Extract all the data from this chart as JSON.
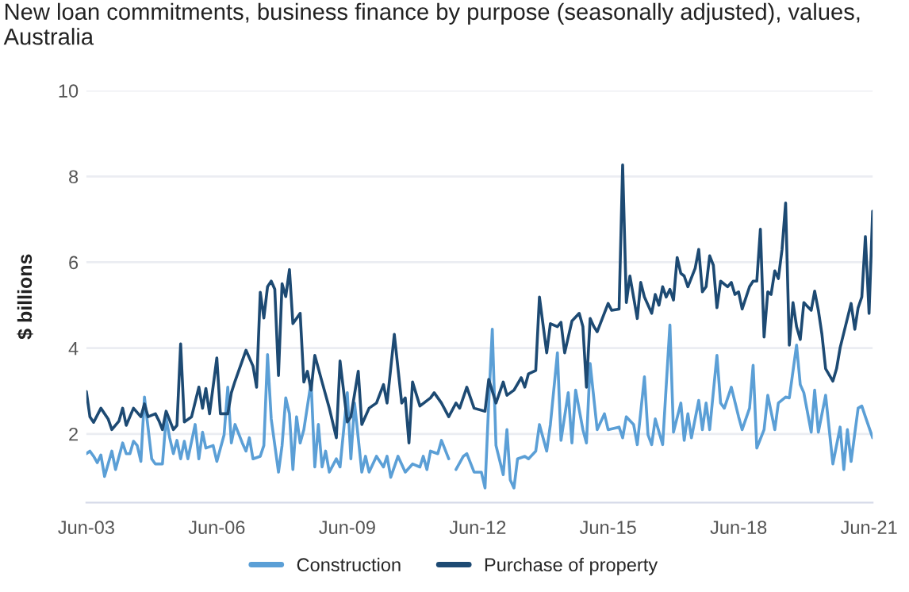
{
  "chart_data": {
    "type": "line",
    "title": "New loan commitments, business finance by purpose (seasonally adjusted), values, Australia",
    "ylabel": "$ billions",
    "ylim": [
      0.4,
      10
    ],
    "yticks": [
      2,
      4,
      6,
      8,
      10
    ],
    "xlim": [
      "2003-06",
      "2021-07"
    ],
    "xticks": [
      {
        "value": "2003-06",
        "label": "Jun-03"
      },
      {
        "value": "2006-06",
        "label": "Jun-06"
      },
      {
        "value": "2009-06",
        "label": "Jun-09"
      },
      {
        "value": "2012-06",
        "label": "Jun-12"
      },
      {
        "value": "2015-06",
        "label": "Jun-15"
      },
      {
        "value": "2018-06",
        "label": "Jun-18"
      },
      {
        "value": "2021-06",
        "label": "Jun-21"
      }
    ],
    "grid": "y",
    "legend": "bottom",
    "marker": "none",
    "line_style": "solid",
    "series": [
      {
        "name": "Construction",
        "color": "#5b9fd6",
        "x": [
          "2003-06",
          "2003-07",
          "2003-08",
          "2003-09",
          "2003-10",
          "2003-11",
          "2004-01",
          "2004-02",
          "2004-04",
          "2004-05",
          "2004-06",
          "2004-07",
          "2004-08",
          "2004-09",
          "2004-10",
          "2004-12",
          "2005-01",
          "2005-03",
          "2005-04",
          "2005-05",
          "2005-06",
          "2005-07",
          "2005-08",
          "2005-09",
          "2005-10",
          "2005-12",
          "2006-01",
          "2006-02",
          "2006-03",
          "2006-05",
          "2006-06",
          "2006-08",
          "2006-09",
          "2006-10",
          "2006-11",
          "2007-01",
          "2007-02",
          "2007-03",
          "2007-04",
          "2007-06",
          "2007-07",
          "2007-08",
          "2007-09",
          "2007-11",
          "2007-12",
          "2008-01",
          "2008-02",
          "2008-03",
          "2008-04",
          "2008-05",
          "2008-06",
          "2008-08",
          "2008-09",
          "2008-10",
          "2008-11",
          "2008-12",
          "2009-01",
          "2009-03",
          "2009-04",
          "2009-06",
          "2009-07",
          "2009-08",
          "2009-10",
          "2009-11",
          "2009-12",
          "2010-02",
          "2010-04",
          "2010-05",
          "2010-06",
          "2010-08",
          "2010-10",
          "2010-12",
          "2011-02",
          "2011-03",
          "2011-04",
          "2011-05",
          "2011-07",
          "2011-08",
          "2011-10",
          "2011-11",
          "2011-12",
          "2012-02",
          "2012-03",
          "2012-05",
          "2012-07",
          "2012-08",
          "2012-09",
          "2012-10",
          "2012-11",
          "2013-01",
          "2013-02",
          "2013-03",
          "2013-04",
          "2013-05",
          "2013-07",
          "2013-08",
          "2013-10",
          "2013-11",
          "2014-01",
          "2014-02",
          "2014-04",
          "2014-05",
          "2014-07",
          "2014-08",
          "2014-09",
          "2014-11",
          "2014-12",
          "2015-01",
          "2015-03",
          "2015-05",
          "2015-06",
          "2015-09",
          "2015-10",
          "2015-11",
          "2016-01",
          "2016-02",
          "2016-04",
          "2016-05",
          "2016-06",
          "2016-07",
          "2016-09",
          "2016-11",
          "2016-12",
          "2017-02",
          "2017-03",
          "2017-04",
          "2017-05",
          "2017-07",
          "2017-08",
          "2017-09",
          "2017-10",
          "2017-12",
          "2018-01",
          "2018-02",
          "2018-04",
          "2018-06",
          "2018-07",
          "2018-09",
          "2018-10",
          "2018-11",
          "2019-01",
          "2019-02",
          "2019-04",
          "2019-05",
          "2019-07",
          "2019-08",
          "2019-10",
          "2019-11",
          "2019-12",
          "2020-02",
          "2020-03",
          "2020-04",
          "2020-06",
          "2020-08",
          "2020-10",
          "2020-11",
          "2020-12",
          "2021-01",
          "2021-03",
          "2021-04",
          "2021-05",
          "2021-07"
        ],
        "values": [
          1.54,
          1.6,
          1.48,
          1.33,
          1.51,
          1.01,
          1.6,
          1.17,
          1.79,
          1.54,
          1.54,
          1.83,
          1.73,
          1.36,
          2.86,
          1.42,
          1.3,
          1.3,
          2.37,
          1.91,
          1.54,
          1.85,
          1.42,
          1.83,
          1.42,
          2.22,
          1.42,
          2.04,
          1.67,
          1.73,
          1.36,
          1.98,
          3.09,
          1.79,
          2.22,
          1.79,
          1.6,
          1.91,
          1.42,
          1.48,
          1.73,
          3.85,
          2.35,
          1.11,
          1.73,
          2.84,
          2.47,
          1.17,
          2.4,
          1.79,
          2.1,
          3.21,
          1.23,
          2.22,
          1.23,
          1.6,
          1.11,
          1.42,
          1.23,
          2.96,
          1.42,
          2.72,
          1.11,
          1.48,
          1.11,
          1.48,
          1.23,
          1.48,
          0.99,
          1.48,
          1.11,
          1.3,
          1.23,
          1.48,
          1.17,
          1.6,
          1.54,
          1.85,
          1.42,
          null,
          1.17,
          1.48,
          1.54,
          1.11,
          1.11,
          0.74,
          2.72,
          4.44,
          1.73,
          1.05,
          2.1,
          0.93,
          0.74,
          1.42,
          1.48,
          1.42,
          1.6,
          2.22,
          1.6,
          2.22,
          3.89,
          1.85,
          2.96,
          1.79,
          3.02,
          2.1,
          1.79,
          3.64,
          2.1,
          2.47,
          2.1,
          2.16,
          1.91,
          2.4,
          2.22,
          1.75,
          3.33,
          1.98,
          1.75,
          2.35,
          1.75,
          4.54,
          2.04,
          2.72,
          1.85,
          2.47,
          1.91,
          2.78,
          2.1,
          2.72,
          2.1,
          3.83,
          2.72,
          2.6,
          3.09,
          2.4,
          2.1,
          2.6,
          3.6,
          1.67,
          2.1,
          2.9,
          2.1,
          2.72,
          2.86,
          2.84,
          4.07,
          3.15,
          2.96,
          2.04,
          3.02,
          2.04,
          2.9,
          1.3,
          2.16,
          1.17,
          2.1,
          1.36,
          2.6,
          2.65,
          2.4,
          1.91
        ]
      },
      {
        "name": "Purchase of property",
        "color": "#1d4a73",
        "x": [
          "2003-06",
          "2003-07",
          "2003-08",
          "2003-10",
          "2003-12",
          "2004-01",
          "2004-03",
          "2004-04",
          "2004-05",
          "2004-07",
          "2004-09",
          "2004-10",
          "2004-11",
          "2005-01",
          "2005-02",
          "2005-03",
          "2005-04",
          "2005-06",
          "2005-07",
          "2005-08",
          "2005-09",
          "2005-11",
          "2006-01",
          "2006-02",
          "2006-03",
          "2006-04",
          "2006-06",
          "2006-07",
          "2006-09",
          "2006-10",
          "2006-11",
          "2007-02",
          "2007-04",
          "2007-05",
          "2007-06",
          "2007-07",
          "2007-08",
          "2007-09",
          "2007-10",
          "2007-11",
          "2007-12",
          "2008-01",
          "2008-02",
          "2008-03",
          "2008-05",
          "2008-06",
          "2008-07",
          "2008-08",
          "2008-09",
          "2008-11",
          "2009-01",
          "2009-03",
          "2009-04",
          "2009-06",
          "2009-07",
          "2009-09",
          "2009-10",
          "2009-12",
          "2010-02",
          "2010-04",
          "2010-05",
          "2010-07",
          "2010-09",
          "2010-10",
          "2010-11",
          "2010-12",
          "2011-02",
          "2011-05",
          "2011-06",
          "2011-08",
          "2011-10",
          "2011-12",
          "2012-01",
          "2012-03",
          "2012-05",
          "2012-08",
          "2012-09",
          "2012-11",
          "2013-01",
          "2013-02",
          "2013-04",
          "2013-06",
          "2013-07",
          "2013-08",
          "2013-10",
          "2013-11",
          "2014-01",
          "2014-02",
          "2014-04",
          "2014-05",
          "2014-06",
          "2014-08",
          "2014-10",
          "2014-11",
          "2014-12",
          "2015-01",
          "2015-02",
          "2015-03",
          "2015-06",
          "2015-07",
          "2015-09",
          "2015-10",
          "2015-11",
          "2015-12",
          "2016-02",
          "2016-03",
          "2016-04",
          "2016-06",
          "2016-07",
          "2016-08",
          "2016-09",
          "2016-10",
          "2016-11",
          "2016-12",
          "2017-01",
          "2017-02",
          "2017-03",
          "2017-04",
          "2017-06",
          "2017-07",
          "2017-08",
          "2017-09",
          "2017-10",
          "2017-11",
          "2017-12",
          "2018-01",
          "2018-03",
          "2018-04",
          "2018-05",
          "2018-06",
          "2018-07",
          "2018-09",
          "2018-10",
          "2018-11",
          "2018-12",
          "2019-01",
          "2019-02",
          "2019-03",
          "2019-04",
          "2019-05",
          "2019-06",
          "2019-07",
          "2019-08",
          "2019-09",
          "2019-10",
          "2019-11",
          "2019-12",
          "2020-02",
          "2020-03",
          "2020-04",
          "2020-05",
          "2020-06",
          "2020-08",
          "2020-09",
          "2020-10",
          "2021-01",
          "2021-02",
          "2021-03",
          "2021-04",
          "2021-05",
          "2021-06",
          "2021-07"
        ],
        "values": [
          2.99,
          2.4,
          2.27,
          2.6,
          2.35,
          2.1,
          2.3,
          2.6,
          2.2,
          2.6,
          2.4,
          2.7,
          2.4,
          2.47,
          2.3,
          2.1,
          2.53,
          2.1,
          2.2,
          4.1,
          2.28,
          2.4,
          3.09,
          2.6,
          3.06,
          2.47,
          3.77,
          2.47,
          2.47,
          2.96,
          3.23,
          3.95,
          3.58,
          3.09,
          5.3,
          4.7,
          5.43,
          5.56,
          5.37,
          3.36,
          5.5,
          5.2,
          5.83,
          4.57,
          4.81,
          3.21,
          3.46,
          3.02,
          3.83,
          3.21,
          2.6,
          1.91,
          3.7,
          2.28,
          2.4,
          3.46,
          2.22,
          2.6,
          2.72,
          3.15,
          2.72,
          4.32,
          2.72,
          2.84,
          1.79,
          3.21,
          2.65,
          2.84,
          2.96,
          2.72,
          2.4,
          2.72,
          2.6,
          3.09,
          2.6,
          2.53,
          3.27,
          2.72,
          3.21,
          2.9,
          3.02,
          3.31,
          3.09,
          3.4,
          3.48,
          5.19,
          3.89,
          4.57,
          4.5,
          4.6,
          3.89,
          4.63,
          4.81,
          4.5,
          3.09,
          4.69,
          4.5,
          4.38,
          5.04,
          4.88,
          4.91,
          8.27,
          5.06,
          5.68,
          4.69,
          5.53,
          5.19,
          4.81,
          5.25,
          5.0,
          5.43,
          5.19,
          5.37,
          5.12,
          6.11,
          5.74,
          5.68,
          5.43,
          5.86,
          6.3,
          5.31,
          5.43,
          6.15,
          5.93,
          4.94,
          5.56,
          5.43,
          5.53,
          5.25,
          5.31,
          4.91,
          5.43,
          5.56,
          5.56,
          6.77,
          4.26,
          5.31,
          5.25,
          5.8,
          5.62,
          6.3,
          7.38,
          4.07,
          5.06,
          4.5,
          4.2,
          5.06,
          4.88,
          5.33,
          4.88,
          4.32,
          3.52,
          3.23,
          3.52,
          4.01,
          5.04,
          4.44,
          4.94,
          5.19,
          6.6,
          4.81,
          7.19
        ]
      }
    ]
  }
}
